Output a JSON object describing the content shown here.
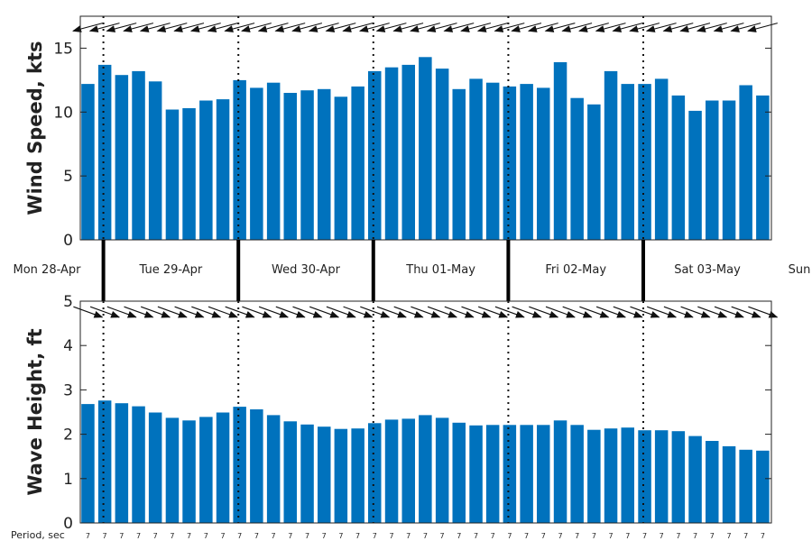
{
  "chart_data": [
    {
      "type": "bar",
      "ylabel": "Wind Speed, kts",
      "ylim": [
        0,
        17.5
      ],
      "yticks": [
        0,
        5,
        10,
        15
      ],
      "grid": false,
      "color": "#0072bd",
      "values": [
        12.2,
        13.7,
        12.9,
        13.2,
        12.4,
        10.2,
        10.3,
        10.9,
        11.0,
        12.5,
        11.9,
        12.3,
        11.5,
        11.7,
        11.8,
        11.2,
        12.0,
        13.2,
        13.5,
        13.7,
        14.3,
        13.4,
        11.8,
        12.6,
        12.3,
        12.0,
        12.2,
        11.9,
        13.9,
        11.1,
        10.6,
        13.2,
        12.2,
        12.2,
        12.6,
        11.3,
        10.1,
        10.9,
        10.9,
        12.1,
        11.3
      ],
      "direction_arrows_deg": [
        195,
        195,
        195,
        195,
        195,
        195,
        195,
        195,
        195,
        195,
        195,
        195,
        195,
        195,
        195,
        195,
        195,
        195,
        195,
        195,
        195,
        195,
        195,
        195,
        195,
        195,
        195,
        195,
        195,
        195,
        195,
        195,
        195,
        195,
        195,
        195,
        195,
        195,
        195,
        195,
        195
      ]
    },
    {
      "type": "bar",
      "ylabel": "Wave Height, ft",
      "ylim": [
        0,
        5
      ],
      "yticks": [
        0,
        1,
        2,
        3,
        4,
        5
      ],
      "grid": false,
      "color": "#0072bd",
      "values": [
        2.68,
        2.76,
        2.7,
        2.63,
        2.49,
        2.37,
        2.31,
        2.39,
        2.49,
        2.62,
        2.56,
        2.43,
        2.29,
        2.22,
        2.17,
        2.12,
        2.13,
        2.25,
        2.33,
        2.35,
        2.43,
        2.37,
        2.26,
        2.2,
        2.21,
        2.21,
        2.21,
        2.21,
        2.31,
        2.21,
        2.1,
        2.13,
        2.15,
        2.09,
        2.09,
        2.07,
        1.96,
        1.85,
        1.73,
        1.65,
        1.63
      ],
      "direction_arrows_deg": [
        -20,
        -20,
        -20,
        -20,
        -20,
        -20,
        -20,
        -20,
        -20,
        -20,
        -20,
        -20,
        -20,
        -20,
        -20,
        -20,
        -20,
        -20,
        -20,
        -20,
        -20,
        -20,
        -20,
        -20,
        -20,
        -20,
        -20,
        -20,
        -20,
        -20,
        -20,
        -20,
        -20,
        -20,
        -20,
        -20,
        -20,
        -20,
        -20,
        -20,
        -20
      ],
      "period_label": "Period, sec",
      "periods": [
        7,
        7,
        7,
        7,
        7,
        7,
        7,
        7,
        7,
        7,
        7,
        7,
        7,
        7,
        7,
        7,
        7,
        7,
        7,
        7,
        7,
        7,
        7,
        7,
        7,
        7,
        7,
        7,
        7,
        7,
        7,
        7,
        7,
        7,
        7,
        7,
        7,
        7,
        7,
        7,
        7
      ]
    }
  ],
  "days": [
    "Mon 28-Apr",
    "Tue 29-Apr",
    "Wed 30-Apr",
    "Thu 01-May",
    "Fri 02-May",
    "Sat 03-May",
    "Sun"
  ],
  "day_boundaries_bar_index": [
    1,
    9,
    17,
    25,
    33
  ]
}
